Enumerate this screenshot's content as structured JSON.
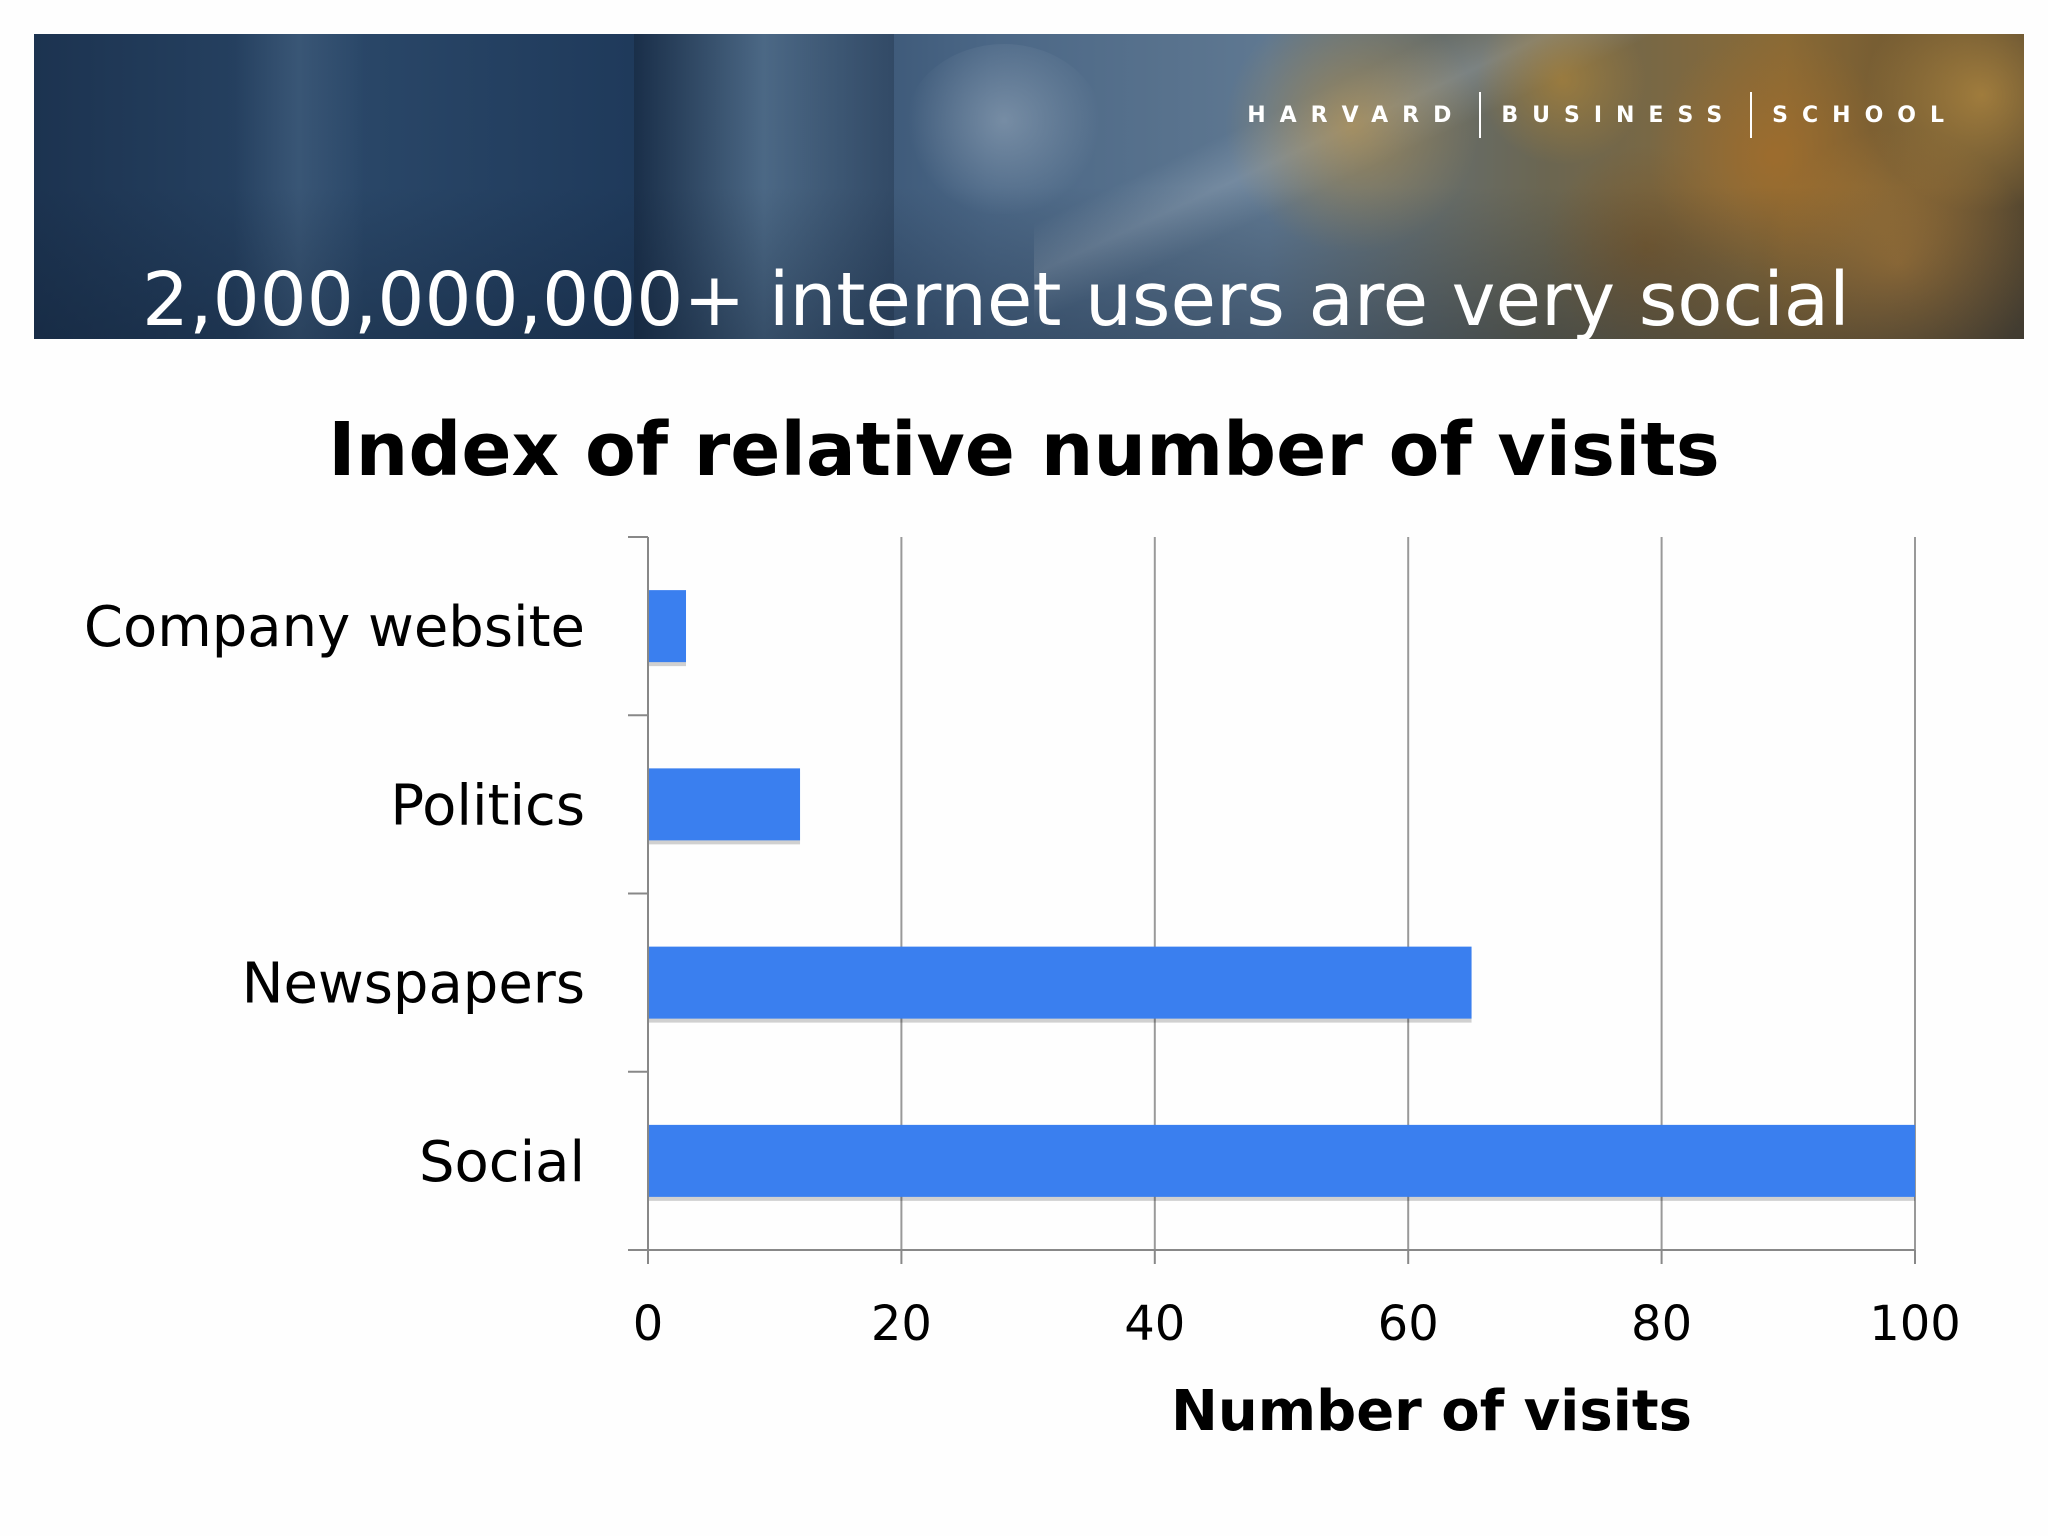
{
  "banner": {
    "institution_words": [
      "HARVARD",
      "BUSINESS",
      "SCHOOL"
    ],
    "headline": "2,000,000,000+ internet users are very social"
  },
  "chart_data": {
    "type": "bar",
    "orientation": "horizontal",
    "title": "Index of relative number of visits",
    "categories": [
      "Company website",
      "Politics",
      "Newspapers",
      "Social"
    ],
    "values": [
      3,
      12,
      65,
      100
    ],
    "xlabel": "Number of visits",
    "ylabel": "",
    "xlim": [
      0,
      100
    ],
    "xticks": [
      0,
      20,
      40,
      60,
      80,
      100
    ],
    "grid": true,
    "bar_color": "#3a7fef",
    "gridline_color": "#999999"
  }
}
